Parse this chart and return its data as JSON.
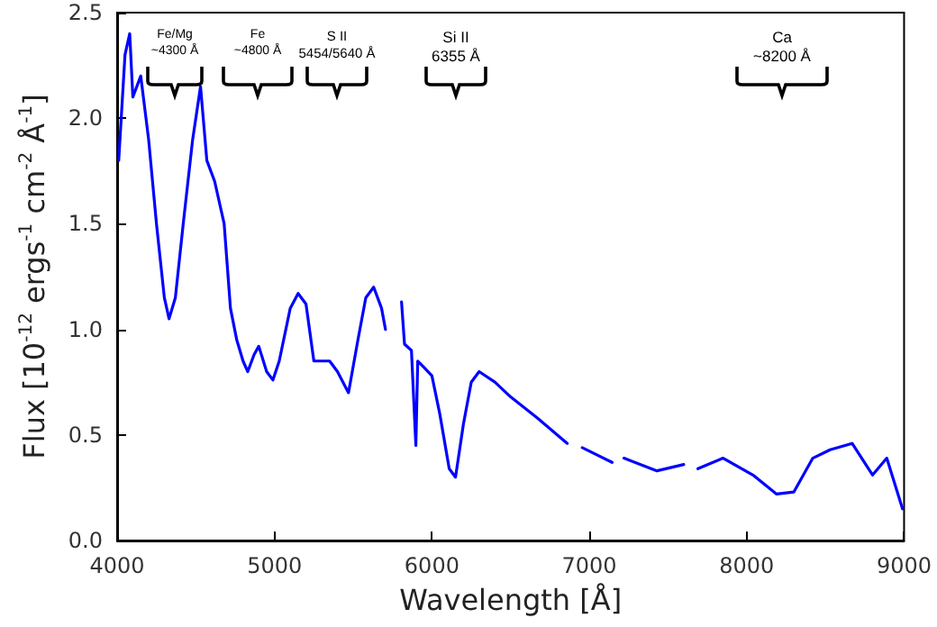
{
  "chart_data": {
    "type": "line",
    "xlabel": "Wavelength [Å]",
    "ylabel": "Flux [10$^{-12}$ ergs$^{-1}$ cm$^{-2}$ Å$^{-1}$]",
    "series": [
      {
        "color": "#0000ff",
        "x": [
          4010,
          4050,
          4080,
          4100,
          4150,
          4200,
          4250,
          4300,
          4330,
          4370,
          4420,
          4480,
          4530,
          4570,
          4620,
          4680,
          4720,
          4760,
          4800,
          4830,
          4870,
          4900,
          4950,
          4990,
          5030,
          5100,
          5150,
          5200,
          5250,
          5300,
          5350,
          5400,
          5470,
          5530,
          5580,
          5630,
          5680,
          5705,
          5760,
          5807,
          5826,
          5870,
          5898,
          5910,
          5950,
          6000,
          6050,
          6110,
          6150,
          6200,
          6250,
          6300,
          6400,
          6500,
          6670,
          6860,
          6900,
          6955,
          7145,
          7180,
          7220,
          7430,
          7600,
          7650,
          7690,
          7850,
          8040,
          8190,
          8300,
          8420,
          8530,
          8670,
          8800,
          8890,
          8990
        ],
        "values": [
          1.8,
          2.3,
          2.4,
          2.1,
          2.2,
          1.9,
          1.5,
          1.15,
          1.05,
          1.15,
          1.5,
          1.9,
          2.15,
          1.8,
          1.7,
          1.5,
          1.1,
          0.95,
          0.85,
          0.8,
          0.88,
          0.92,
          0.8,
          0.76,
          0.85,
          1.1,
          1.17,
          1.12,
          0.85,
          0.85,
          0.85,
          0.8,
          0.7,
          0.95,
          1.15,
          1.2,
          1.1,
          1.0,
          null,
          1.13,
          0.93,
          0.9,
          0.45,
          0.85,
          0.82,
          0.78,
          0.6,
          0.34,
          0.3,
          0.55,
          0.75,
          0.8,
          0.75,
          0.68,
          0.58,
          0.46,
          null,
          0.44,
          0.37,
          null,
          0.39,
          0.33,
          0.36,
          null,
          0.34,
          0.39,
          0.31,
          0.22,
          0.23,
          0.39,
          0.43,
          0.46,
          0.31,
          0.39,
          0.15
        ]
      }
    ],
    "xlim": [
      4000,
      9000
    ],
    "xticks": [
      4000,
      5000,
      6000,
      7000,
      8000,
      9000
    ],
    "ylim": [
      0,
      2.5
    ],
    "yticks": [
      {
        "value": 0,
        "label": "0.0"
      },
      {
        "value": 0.5,
        "label": "0.5"
      },
      {
        "value": 1,
        "label": "1.0"
      },
      {
        "value": 1.5,
        "label": "1.5"
      },
      {
        "value": 2,
        "label": "2.0"
      },
      {
        "value": 2.5,
        "label": "2.5"
      }
    ],
    "grid": false,
    "marker": "none",
    "line_style": "solid",
    "annotations": [
      "Fe/Mg\n~4300 Å",
      "Fe\n~4800 Å",
      "S II\n5454/5640 Å",
      "Si II\n6355 Å",
      "Ca\n~8200 Å"
    ]
  }
}
